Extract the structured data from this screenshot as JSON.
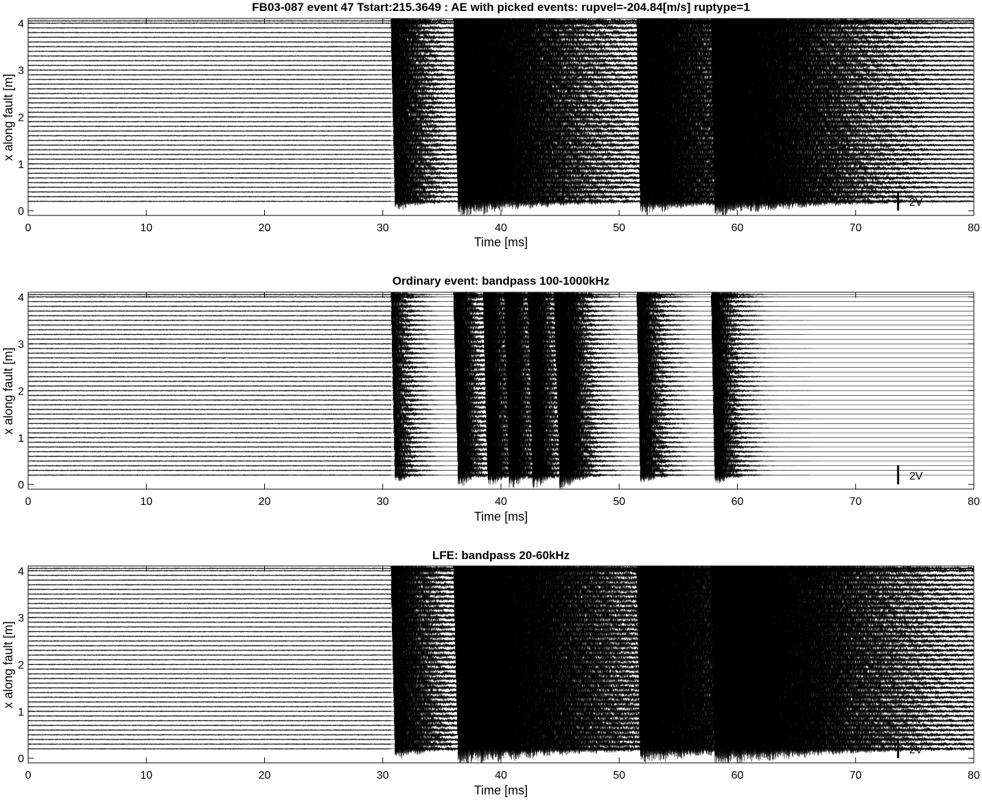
{
  "figure": {
    "background": "#ffffff",
    "trace_color": "#000000"
  },
  "chart_data": [
    {
      "type": "line",
      "title": "FB03-087 event 47 Tstart:215.3649 : AE with picked events: rupvel=-204.84[m/s] ruptype=1",
      "xlabel": "Time [ms]",
      "ylabel": "x along fault [m]",
      "xlim": [
        0,
        80
      ],
      "ylim": [
        -0.1,
        4.1
      ],
      "xticks": [
        0,
        10,
        20,
        30,
        40,
        50,
        60,
        70,
        80
      ],
      "yticks": [
        0,
        1,
        2,
        3,
        4
      ],
      "grid": false,
      "scale_bar_label": "2V",
      "scale_bar_time_ms": 73.6,
      "channel_count": 40,
      "channel_positions_m": [
        0.2,
        0.3,
        0.4,
        0.5,
        0.6,
        0.7,
        0.8,
        0.9,
        1.0,
        1.1,
        1.2,
        1.3,
        1.4,
        1.5,
        1.6,
        1.7,
        1.8,
        1.9,
        2.0,
        2.1,
        2.2,
        2.3,
        2.4,
        2.5,
        2.6,
        2.7,
        2.8,
        2.9,
        3.0,
        3.1,
        3.2,
        3.3,
        3.4,
        3.5,
        3.6,
        3.7,
        3.8,
        3.9,
        4.0,
        4.05
      ],
      "onset_ms": 30.7,
      "events": [
        {
          "start_ms": 30.7,
          "end_ms": 36.0,
          "peak_amplitude": 0.9,
          "decay": 0.4,
          "sweep_ms_per_m": 0.35
        },
        {
          "start_ms": 36.0,
          "end_ms": 51.5,
          "peak_amplitude": 1.6,
          "decay": 0.15,
          "sweep_ms_per_m": 0.4
        },
        {
          "start_ms": 51.5,
          "end_ms": 57.8,
          "peak_amplitude": 1.2,
          "decay": 0.2,
          "sweep_ms_per_m": 0.3
        },
        {
          "start_ms": 57.8,
          "end_ms": 80.0,
          "peak_amplitude": 1.2,
          "decay": 0.12,
          "sweep_ms_per_m": 0.3
        }
      ]
    },
    {
      "type": "line",
      "title": "Ordinary event: bandpass 100-1000kHz",
      "xlabel": "Time [ms]",
      "ylabel": "x along fault [m]",
      "xlim": [
        0,
        80
      ],
      "ylim": [
        -0.1,
        4.1
      ],
      "xticks": [
        0,
        10,
        20,
        30,
        40,
        50,
        60,
        70,
        80
      ],
      "yticks": [
        0,
        1,
        2,
        3,
        4
      ],
      "grid": false,
      "scale_bar_label": "2V",
      "scale_bar_time_ms": 73.6,
      "channel_count": 40,
      "channel_positions_m": [
        0.2,
        0.3,
        0.4,
        0.5,
        0.6,
        0.7,
        0.8,
        0.9,
        1.0,
        1.1,
        1.2,
        1.3,
        1.4,
        1.5,
        1.6,
        1.7,
        1.8,
        1.9,
        2.0,
        2.1,
        2.2,
        2.3,
        2.4,
        2.5,
        2.6,
        2.7,
        2.8,
        2.9,
        3.0,
        3.1,
        3.2,
        3.3,
        3.4,
        3.5,
        3.6,
        3.7,
        3.8,
        3.9,
        4.0,
        4.05
      ],
      "onset_ms": 30.7,
      "events": [
        {
          "start_ms": 30.7,
          "end_ms": 33.5,
          "peak_amplitude": 0.8,
          "decay": 0.9,
          "sweep_ms_per_m": 0.35
        },
        {
          "start_ms": 36.0,
          "end_ms": 38.5,
          "peak_amplitude": 1.4,
          "decay": 0.9,
          "sweep_ms_per_m": 0.4
        },
        {
          "start_ms": 38.5,
          "end_ms": 40.3,
          "peak_amplitude": 1.4,
          "decay": 0.9,
          "sweep_ms_per_m": 0.4
        },
        {
          "start_ms": 40.3,
          "end_ms": 42.3,
          "peak_amplitude": 1.4,
          "decay": 0.9,
          "sweep_ms_per_m": 0.4
        },
        {
          "start_ms": 42.3,
          "end_ms": 44.5,
          "peak_amplitude": 1.4,
          "decay": 0.9,
          "sweep_ms_per_m": 0.4
        },
        {
          "start_ms": 44.5,
          "end_ms": 48.0,
          "peak_amplitude": 1.6,
          "decay": 0.7,
          "sweep_ms_per_m": 0.5
        },
        {
          "start_ms": 51.5,
          "end_ms": 54.5,
          "peak_amplitude": 1.1,
          "decay": 0.8,
          "sweep_ms_per_m": 0.3
        },
        {
          "start_ms": 57.8,
          "end_ms": 61.0,
          "peak_amplitude": 1.1,
          "decay": 0.8,
          "sweep_ms_per_m": 0.3
        }
      ]
    },
    {
      "type": "line",
      "title": "LFE: bandpass 20-60kHz",
      "xlabel": "Time [ms]",
      "ylabel": "x along fault [m]",
      "xlim": [
        0,
        80
      ],
      "ylim": [
        -0.1,
        4.1
      ],
      "xticks": [
        0,
        10,
        20,
        30,
        40,
        50,
        60,
        70,
        80
      ],
      "yticks": [
        0,
        1,
        2,
        3,
        4
      ],
      "grid": false,
      "scale_bar_label": "2V",
      "scale_bar_time_ms": 73.6,
      "channel_count": 40,
      "channel_positions_m": [
        0.2,
        0.3,
        0.4,
        0.5,
        0.6,
        0.7,
        0.8,
        0.9,
        1.0,
        1.1,
        1.2,
        1.3,
        1.4,
        1.5,
        1.6,
        1.7,
        1.8,
        1.9,
        2.0,
        2.1,
        2.2,
        2.3,
        2.4,
        2.5,
        2.6,
        2.7,
        2.8,
        2.9,
        3.0,
        3.1,
        3.2,
        3.3,
        3.4,
        3.5,
        3.6,
        3.7,
        3.8,
        3.9,
        4.0,
        4.05
      ],
      "onset_ms": 30.7,
      "events": [
        {
          "start_ms": 30.7,
          "end_ms": 36.0,
          "peak_amplitude": 1.0,
          "decay": 0.35,
          "sweep_ms_per_m": 0.35
        },
        {
          "start_ms": 36.0,
          "end_ms": 51.5,
          "peak_amplitude": 1.7,
          "decay": 0.12,
          "sweep_ms_per_m": 0.4
        },
        {
          "start_ms": 51.5,
          "end_ms": 57.8,
          "peak_amplitude": 1.3,
          "decay": 0.18,
          "sweep_ms_per_m": 0.3
        },
        {
          "start_ms": 57.8,
          "end_ms": 80.0,
          "peak_amplitude": 1.3,
          "decay": 0.1,
          "sweep_ms_per_m": 0.3
        }
      ]
    }
  ]
}
